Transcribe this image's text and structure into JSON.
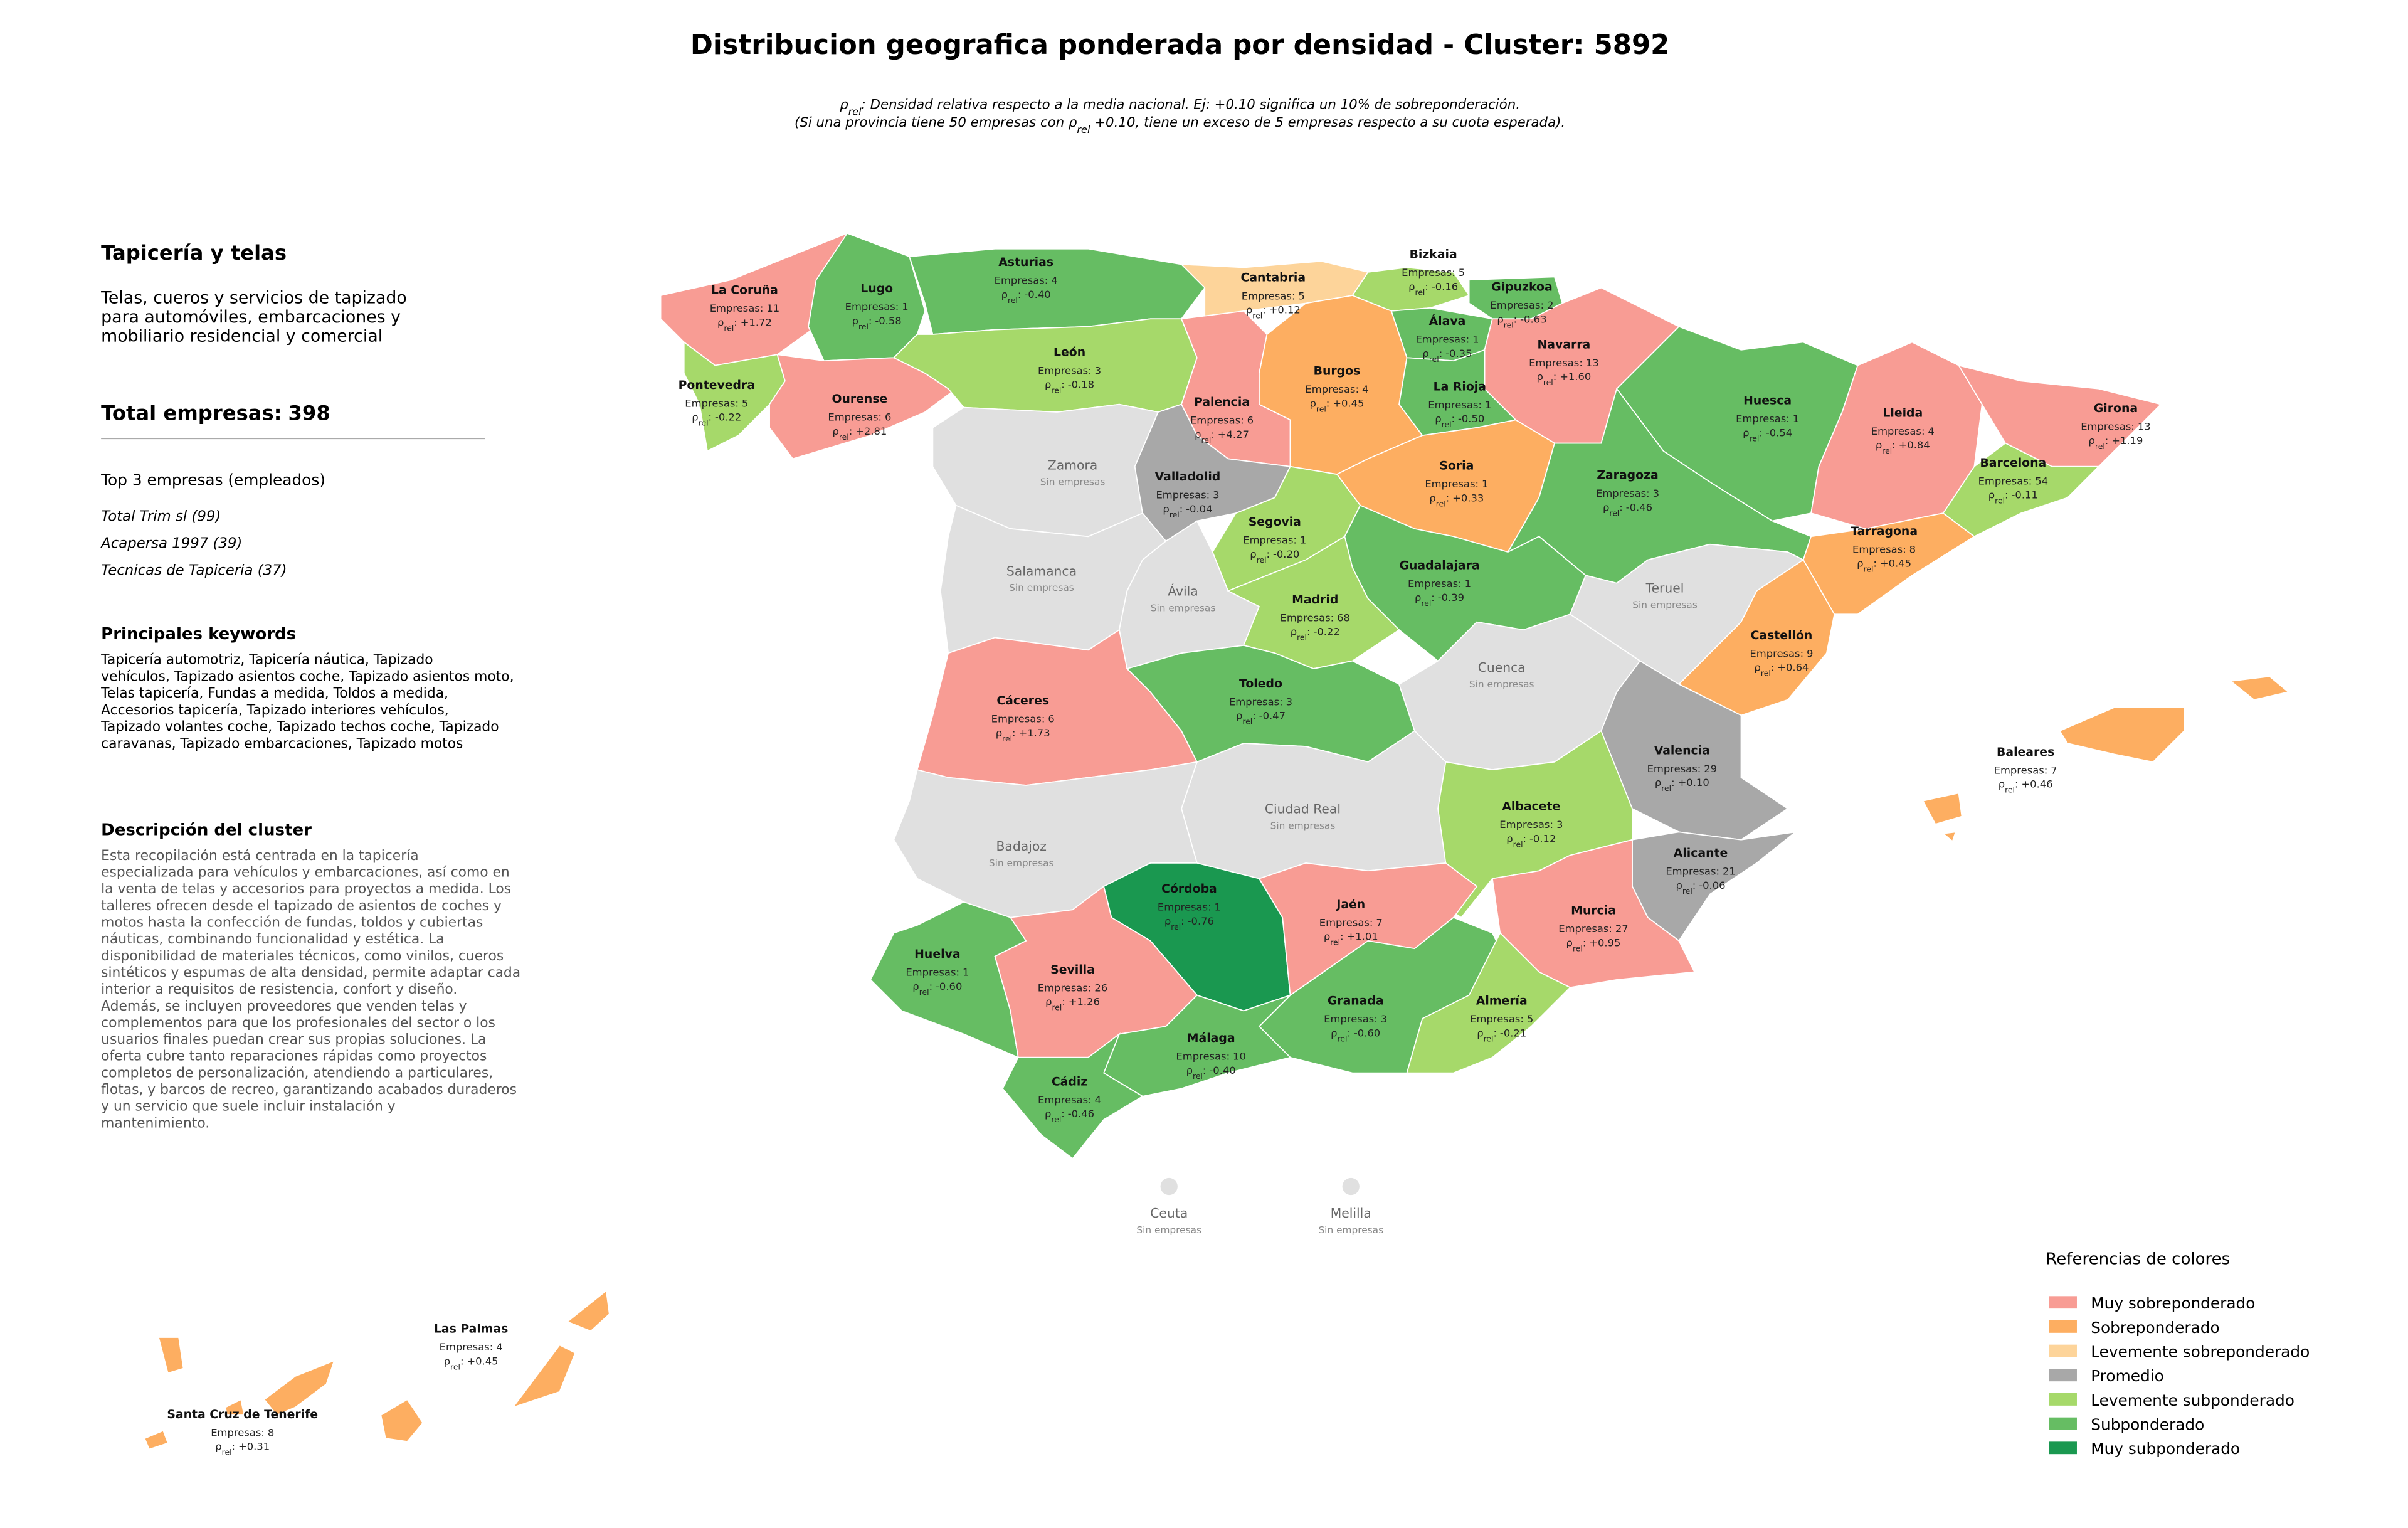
{
  "title": "Distribucion geografica ponderada por densidad - Cluster: 5892",
  "subtitle_lines": [
    [
      "ρ",
      "rel",
      ": Densidad relativa respecto a la media nacional. Ej: +0.10 significa un 10% de sobreponderación."
    ],
    [
      "(Si una provincia tiene 50 empresas con ρ",
      "rel",
      " +0.10, tiene un exceso de 5 empresas respecto a su cuota esperada)."
    ]
  ],
  "sidebar": {
    "heading": "Tapicería y telas",
    "summary_lines": [
      "Telas, cueros y servicios de tapizado",
      "para automóviles, embarcaciones y",
      "mobiliario residencial y comercial"
    ],
    "total_label": "Total empresas:",
    "total": 398,
    "top_heading": "Top 3 empresas (empleados)",
    "top_companies": [
      "Total Trim sl (99)",
      "Acapersa 1997 (39)",
      "Tecnicas de Tapiceria (37)"
    ],
    "keywords_heading": "Principales keywords",
    "keywords_lines": [
      "Tapicería automotriz, Tapicería náutica, Tapizado",
      "vehículos, Tapizado asientos coche, Tapizado asientos moto,",
      "Telas tapicería, Fundas a medida, Toldos a medida,",
      "Accesorios tapicería, Tapizado interiores vehículos,",
      "Tapizado volantes coche, Tapizado techos coche, Tapizado",
      "caravanas, Tapizado embarcaciones, Tapizado motos"
    ],
    "description_heading": "Descripción del cluster",
    "description_lines": [
      "Esta recopilación está centrada en la tapicería",
      "especializada para vehículos y embarcaciones, así como en",
      "la venta de telas y accesorios para proyectos a medida. Los",
      "talleres ofrecen desde el tapizado de asientos de coches y",
      "motos hasta la confección de fundas, toldos y cubiertas",
      "náuticas, combinando funcionalidad y estética. La",
      "disponibilidad de materiales técnicos, como vinilos, cueros",
      "sintéticos y espumas de alta densidad, permite adaptar cada",
      "interior a requisitos de resistencia, confort y diseño.",
      "Además, se incluyen proveedores que venden telas y",
      "complementos para que los profesionales del sector o los",
      "usuarios finales puedan crear sus propias soluciones. La",
      "oferta cubre tanto reparaciones rápidas como proyectos",
      "completos de personalización, atendiendo a particulares,",
      "flotas, y barcos de recreo, garantizando acabados duraderos",
      "y un servicio que suele incluir instalación y",
      "mantenimiento."
    ]
  },
  "empresas_label": "Empresas:",
  "rho_label": [
    "ρ",
    "rel",
    ":"
  ],
  "no_data_label": "Sin empresas",
  "no_data_color": "#e0e0e0",
  "legend": {
    "title": "Referencias de colores",
    "items": [
      {
        "name": "Muy sobreponderado",
        "color": "#f89c94"
      },
      {
        "name": "Sobreponderado",
        "color": "#fdae61"
      },
      {
        "name": "Levemente sobreponderado",
        "color": "#fdd49a"
      },
      {
        "name": "Promedio",
        "color": "#a8a8a8"
      },
      {
        "name": "Levemente subponderado",
        "color": "#a6d96a"
      },
      {
        "name": "Subponderado",
        "color": "#66bd63"
      },
      {
        "name": "Muy subponderado",
        "color": "#1a9850"
      }
    ]
  },
  "provinces": [
    {
      "name": "La Coruña",
      "empresas": 11,
      "rho": "+1.72",
      "level": 0
    },
    {
      "name": "Lugo",
      "empresas": 1,
      "rho": "-0.58",
      "level": 5
    },
    {
      "name": "Asturias",
      "empresas": 4,
      "rho": "-0.40",
      "level": 5
    },
    {
      "name": "Cantabria",
      "empresas": 5,
      "rho": "+0.12",
      "level": 2
    },
    {
      "name": "Bizkaia",
      "empresas": 5,
      "rho": "-0.16",
      "level": 4
    },
    {
      "name": "Gipuzkoa",
      "empresas": 2,
      "rho": "-0.63",
      "level": 5
    },
    {
      "name": "Álava",
      "empresas": 1,
      "rho": "-0.35",
      "level": 5
    },
    {
      "name": "Navarra",
      "empresas": 13,
      "rho": "+1.60",
      "level": 0
    },
    {
      "name": "Pontevedra",
      "empresas": 5,
      "rho": "-0.22",
      "level": 4
    },
    {
      "name": "Ourense",
      "empresas": 6,
      "rho": "+2.81",
      "level": 0
    },
    {
      "name": "León",
      "empresas": 3,
      "rho": "-0.18",
      "level": 4
    },
    {
      "name": "Palencia",
      "empresas": 6,
      "rho": "+4.27",
      "level": 0
    },
    {
      "name": "Burgos",
      "empresas": 4,
      "rho": "+0.45",
      "level": 1
    },
    {
      "name": "La Rioja",
      "empresas": 1,
      "rho": "-0.50",
      "level": 5
    },
    {
      "name": "Huesca",
      "empresas": 1,
      "rho": "-0.54",
      "level": 5
    },
    {
      "name": "Lleida",
      "empresas": 4,
      "rho": "+0.84",
      "level": 0
    },
    {
      "name": "Girona",
      "empresas": 13,
      "rho": "+1.19",
      "level": 0
    },
    {
      "name": "Zamora"
    },
    {
      "name": "Valladolid",
      "empresas": 3,
      "rho": "-0.04",
      "level": 3
    },
    {
      "name": "Soria",
      "empresas": 1,
      "rho": "+0.33",
      "level": 1
    },
    {
      "name": "Zaragoza",
      "empresas": 3,
      "rho": "-0.46",
      "level": 5
    },
    {
      "name": "Barcelona",
      "empresas": 54,
      "rho": "-0.11",
      "level": 4
    },
    {
      "name": "Segovia",
      "empresas": 1,
      "rho": "-0.20",
      "level": 4
    },
    {
      "name": "Salamanca"
    },
    {
      "name": "Guadalajara",
      "empresas": 1,
      "rho": "-0.39",
      "level": 5
    },
    {
      "name": "Tarragona",
      "empresas": 8,
      "rho": "+0.45",
      "level": 1
    },
    {
      "name": "Ávila"
    },
    {
      "name": "Teruel"
    },
    {
      "name": "Madrid",
      "empresas": 68,
      "rho": "-0.22",
      "level": 4
    },
    {
      "name": "Castellón",
      "empresas": 9,
      "rho": "+0.64",
      "level": 1
    },
    {
      "name": "Cáceres",
      "empresas": 6,
      "rho": "+1.73",
      "level": 0
    },
    {
      "name": "Toledo",
      "empresas": 3,
      "rho": "-0.47",
      "level": 5
    },
    {
      "name": "Cuenca"
    },
    {
      "name": "Valencia",
      "empresas": 29,
      "rho": "+0.10",
      "level": 3
    },
    {
      "name": "Baleares",
      "empresas": 7,
      "rho": "+0.46",
      "level": 1
    },
    {
      "name": "Ciudad Real"
    },
    {
      "name": "Albacete",
      "empresas": 3,
      "rho": "-0.12",
      "level": 4
    },
    {
      "name": "Badajoz"
    },
    {
      "name": "Alicante",
      "empresas": 21,
      "rho": "-0.06",
      "level": 3
    },
    {
      "name": "Córdoba",
      "empresas": 1,
      "rho": "-0.76",
      "level": 6
    },
    {
      "name": "Jaén",
      "empresas": 7,
      "rho": "+1.01",
      "level": 0
    },
    {
      "name": "Murcia",
      "empresas": 27,
      "rho": "+0.95",
      "level": 0
    },
    {
      "name": "Huelva",
      "empresas": 1,
      "rho": "-0.60",
      "level": 5
    },
    {
      "name": "Sevilla",
      "empresas": 26,
      "rho": "+1.26",
      "level": 0
    },
    {
      "name": "Granada",
      "empresas": 3,
      "rho": "-0.60",
      "level": 5
    },
    {
      "name": "Almería",
      "empresas": 5,
      "rho": "-0.21",
      "level": 4
    },
    {
      "name": "Málaga",
      "empresas": 10,
      "rho": "-0.40",
      "level": 5
    },
    {
      "name": "Cádiz",
      "empresas": 4,
      "rho": "-0.46",
      "level": 5
    },
    {
      "name": "Ceuta"
    },
    {
      "name": "Melilla"
    },
    {
      "name": "Las Palmas",
      "empresas": 4,
      "rho": "+0.45",
      "level": 1
    },
    {
      "name": "Santa Cruz de Tenerife",
      "empresas": 8,
      "rho": "+0.31",
      "level": 1
    }
  ]
}
